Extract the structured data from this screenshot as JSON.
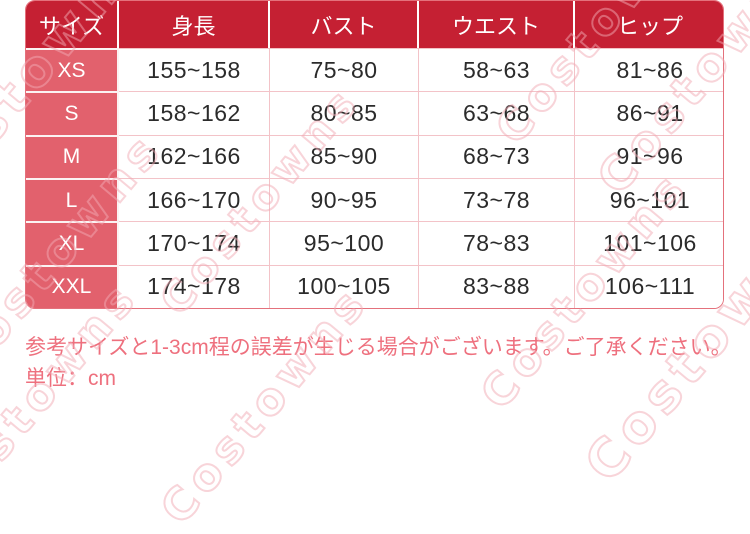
{
  "chart_data": {
    "type": "table",
    "title": "",
    "columns": [
      "サイズ",
      "身長",
      "バスト",
      "ウエスト",
      "ヒップ"
    ],
    "column_keys": [
      "size",
      "height",
      "bust",
      "waist",
      "hip"
    ],
    "rows": [
      [
        "XS",
        "155~158",
        "75~80",
        "58~63",
        "81~86"
      ],
      [
        "S",
        "158~162",
        "80~85",
        "63~68",
        "86~91"
      ],
      [
        "M",
        "162~166",
        "85~90",
        "68~73",
        "91~96"
      ],
      [
        "L",
        "166~170",
        "90~95",
        "73~78",
        "96~101"
      ],
      [
        "XL",
        "170~174",
        "95~100",
        "78~83",
        "101~106"
      ],
      [
        "XXL",
        "174~178",
        "100~105",
        "83~88",
        "106~111"
      ]
    ],
    "notes": [
      "参考サイズと1-3cm程の誤差が生じる場合がございます。ご了承ください。",
      "単位：cm"
    ],
    "unit": "cm"
  },
  "watermark": {
    "text": "Costowns"
  },
  "colors": {
    "header_red": "#c52033",
    "size_column_pink": "#e2616d",
    "grid_line_pink": "#f3c3c8",
    "outer_border_red": "#e4717c",
    "note_text_pink": "#ee707e",
    "watermark_pink": "#f2aab3",
    "cell_text": "#2b2b2b"
  }
}
